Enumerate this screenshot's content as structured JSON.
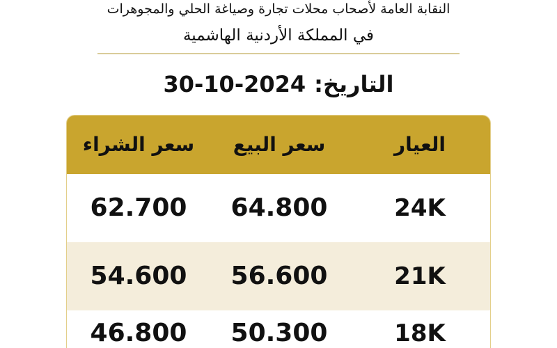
{
  "header": {
    "line1": "النقابة العامة لأصحاب محلات تجارة وصياغة الحلي والمجوهرات",
    "line2": "في المملكة الأردنية الهاشمية"
  },
  "date": {
    "label": "التاريخ:",
    "value": "30-10-2024"
  },
  "table": {
    "columns": [
      "العيار",
      "سعر البيع",
      "سعر الشراء"
    ],
    "rows": [
      {
        "karat": "24K",
        "sell": "64.800",
        "buy": "62.700"
      },
      {
        "karat": "21K",
        "sell": "56.600",
        "buy": "54.600"
      },
      {
        "karat": "18K",
        "sell": "50.300",
        "buy": "46.800"
      }
    ]
  },
  "colors": {
    "header_gold": "#c9a52e",
    "alt_row": "#f4eddb",
    "divider": "#d9cc9a"
  }
}
